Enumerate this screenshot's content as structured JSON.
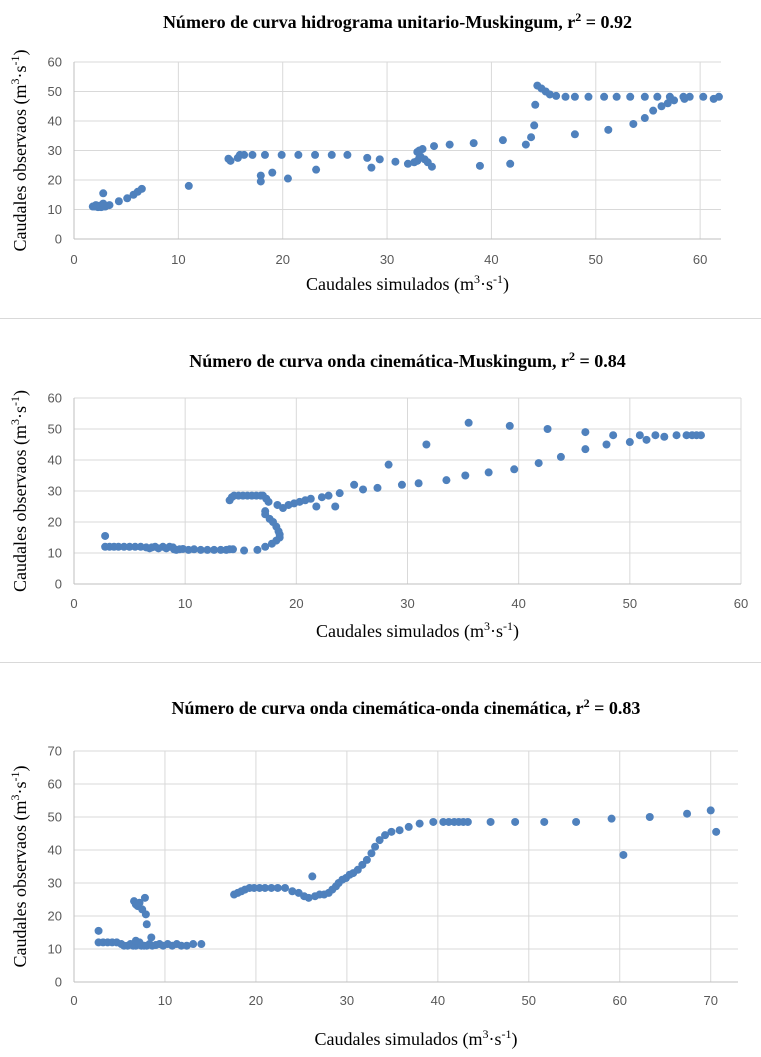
{
  "chart_data": [
    {
      "type": "scatter",
      "title": "Número de curva hidrograma unitario-Muskingum, r",
      "title_sup": "2",
      "title_tail": " = 0.92",
      "xlabel": "Caudales simulados (m",
      "xlabel_sup1": "3",
      "xlabel_mid": "·s",
      "xlabel_sup2": "-1",
      "xlabel_end": ")",
      "ylabel": "Caudales observaos (m",
      "ylabel_sup1": "3",
      "ylabel_mid": "·s",
      "ylabel_sup2": "-1",
      "ylabel_end": ")",
      "xlim": [
        0,
        62
      ],
      "ylim": [
        0,
        60
      ],
      "xticks": [
        0,
        10,
        20,
        30,
        40,
        50,
        60
      ],
      "yticks": [
        0,
        10,
        20,
        30,
        40,
        50,
        60
      ],
      "color": "#4f81bd",
      "points": [
        [
          1.8,
          11
        ],
        [
          2.0,
          11
        ],
        [
          2.1,
          11.5
        ],
        [
          2.2,
          11
        ],
        [
          2.3,
          10.8
        ],
        [
          2.4,
          11
        ],
        [
          2.5,
          11.3
        ],
        [
          2.6,
          10.8
        ],
        [
          2.7,
          11.2
        ],
        [
          2.8,
          11
        ],
        [
          3.0,
          11
        ],
        [
          2.8,
          12
        ],
        [
          2.8,
          15.5
        ],
        [
          3.4,
          11.5
        ],
        [
          4.3,
          12.8
        ],
        [
          5.1,
          13.8
        ],
        [
          5.7,
          15
        ],
        [
          6.1,
          16
        ],
        [
          6.5,
          17
        ],
        [
          11.0,
          18
        ],
        [
          14.8,
          27.2
        ],
        [
          15.0,
          26.5
        ],
        [
          15.7,
          27.5
        ],
        [
          15.9,
          28.5
        ],
        [
          16.3,
          28.5
        ],
        [
          17.1,
          28.5
        ],
        [
          18.3,
          28.5
        ],
        [
          19.9,
          28.5
        ],
        [
          21.5,
          28.5
        ],
        [
          23.1,
          28.5
        ],
        [
          24.7,
          28.5
        ],
        [
          26.2,
          28.5
        ],
        [
          17.9,
          21.5
        ],
        [
          17.9,
          19.5
        ],
        [
          19.0,
          22.5
        ],
        [
          20.5,
          20.5
        ],
        [
          23.2,
          23.5
        ],
        [
          28.1,
          27.5
        ],
        [
          28.5,
          24.2
        ],
        [
          29.3,
          27
        ],
        [
          30.8,
          26.2
        ],
        [
          32.0,
          25.5
        ],
        [
          32.6,
          26
        ],
        [
          32.9,
          26.5
        ],
        [
          33.1,
          27.5
        ],
        [
          33.2,
          28
        ],
        [
          32.9,
          29.5
        ],
        [
          33.1,
          30
        ],
        [
          33.4,
          30.5
        ],
        [
          33.6,
          27
        ],
        [
          33.9,
          26
        ],
        [
          34.3,
          24.5
        ],
        [
          34.5,
          31.5
        ],
        [
          36.0,
          32
        ],
        [
          38.3,
          32.5
        ],
        [
          38.9,
          24.8
        ],
        [
          41.1,
          33.5
        ],
        [
          41.8,
          25.5
        ],
        [
          43.3,
          32
        ],
        [
          43.8,
          34.5
        ],
        [
          44.1,
          38.5
        ],
        [
          44.2,
          45.5
        ],
        [
          44.4,
          52
        ],
        [
          44.8,
          51
        ],
        [
          45.2,
          50
        ],
        [
          45.6,
          49
        ],
        [
          46.2,
          48.5
        ],
        [
          47.1,
          48.2
        ],
        [
          48.0,
          48.2
        ],
        [
          49.3,
          48.2
        ],
        [
          50.8,
          48.2
        ],
        [
          52.0,
          48.2
        ],
        [
          53.3,
          48.2
        ],
        [
          54.7,
          48.2
        ],
        [
          55.9,
          48.2
        ],
        [
          57.1,
          48.2
        ],
        [
          58.4,
          48.2
        ],
        [
          59.0,
          48.2
        ],
        [
          60.3,
          48.2
        ],
        [
          61.8,
          48.2
        ],
        [
          48.0,
          35.5
        ],
        [
          51.2,
          37
        ],
        [
          53.6,
          39
        ],
        [
          54.7,
          41
        ],
        [
          55.5,
          43.5
        ],
        [
          56.3,
          45
        ],
        [
          56.9,
          46
        ],
        [
          57.5,
          47
        ],
        [
          58.5,
          47.5
        ],
        [
          61.3,
          47.5
        ]
      ]
    },
    {
      "type": "scatter",
      "title": "Número de curva onda cinemática-Muskingum, r",
      "title_sup": "2",
      "title_tail": " = 0.84",
      "xlabel": "Caudales simulados (m",
      "xlabel_sup1": "3",
      "xlabel_mid": "·s",
      "xlabel_sup2": "-1",
      "xlabel_end": ")",
      "ylabel": "Caudales observaos (m",
      "ylabel_sup1": "3",
      "ylabel_mid": "·s",
      "ylabel_sup2": "-1",
      "ylabel_end": ")",
      "xlim": [
        0,
        60
      ],
      "ylim": [
        0,
        60
      ],
      "xticks": [
        0,
        10,
        20,
        30,
        40,
        50,
        60
      ],
      "yticks": [
        0,
        10,
        20,
        30,
        40,
        50,
        60
      ],
      "color": "#4f81bd",
      "points": [
        [
          2.8,
          15.5
        ],
        [
          2.8,
          12
        ],
        [
          3.2,
          12
        ],
        [
          3.6,
          12
        ],
        [
          4.0,
          12
        ],
        [
          4.5,
          12
        ],
        [
          5.0,
          12
        ],
        [
          5.5,
          12
        ],
        [
          6.0,
          12
        ],
        [
          6.5,
          11.8
        ],
        [
          6.8,
          11.5
        ],
        [
          7.0,
          11.8
        ],
        [
          7.3,
          12
        ],
        [
          7.6,
          11.5
        ],
        [
          8.0,
          12
        ],
        [
          8.3,
          11.5
        ],
        [
          8.6,
          12
        ],
        [
          8.9,
          11.8
        ],
        [
          9.0,
          11.2
        ],
        [
          9.2,
          11
        ],
        [
          9.5,
          11.2
        ],
        [
          9.8,
          11.3
        ],
        [
          10.3,
          11
        ],
        [
          10.8,
          11.2
        ],
        [
          11.4,
          11
        ],
        [
          12.0,
          11
        ],
        [
          12.6,
          11
        ],
        [
          13.2,
          11
        ],
        [
          13.7,
          11
        ],
        [
          14.0,
          11.2
        ],
        [
          14.3,
          11.2
        ],
        [
          14.0,
          27
        ],
        [
          14.2,
          28
        ],
        [
          14.4,
          28.5
        ],
        [
          14.8,
          28.5
        ],
        [
          15.2,
          28.5
        ],
        [
          15.6,
          28.5
        ],
        [
          16.0,
          28.5
        ],
        [
          16.4,
          28.5
        ],
        [
          16.8,
          28.5
        ],
        [
          17.0,
          28.5
        ],
        [
          17.3,
          27.5
        ],
        [
          17.5,
          26.5
        ],
        [
          17.2,
          23.5
        ],
        [
          17.2,
          22.5
        ],
        [
          17.6,
          21
        ],
        [
          17.9,
          20
        ],
        [
          18.2,
          18.5
        ],
        [
          18.4,
          17
        ],
        [
          18.5,
          16
        ],
        [
          18.5,
          15
        ],
        [
          18.2,
          14
        ],
        [
          17.8,
          13
        ],
        [
          17.2,
          12
        ],
        [
          16.5,
          11
        ],
        [
          15.3,
          10.8
        ],
        [
          18.3,
          25.5
        ],
        [
          18.8,
          24.5
        ],
        [
          19.3,
          25.5
        ],
        [
          19.8,
          26
        ],
        [
          20.3,
          26.5
        ],
        [
          20.8,
          27
        ],
        [
          21.3,
          27.5
        ],
        [
          21.8,
          25
        ],
        [
          22.3,
          28
        ],
        [
          22.9,
          28.5
        ],
        [
          23.5,
          25
        ],
        [
          23.9,
          29.3
        ],
        [
          25.2,
          32
        ],
        [
          26.0,
          30.5
        ],
        [
          27.3,
          31
        ],
        [
          28.3,
          38.5
        ],
        [
          29.5,
          32
        ],
        [
          31.0,
          32.5
        ],
        [
          31.7,
          45
        ],
        [
          33.5,
          33.5
        ],
        [
          35.2,
          35
        ],
        [
          35.5,
          52
        ],
        [
          37.3,
          36
        ],
        [
          39.2,
          51
        ],
        [
          39.6,
          37
        ],
        [
          41.8,
          39
        ],
        [
          42.6,
          50
        ],
        [
          43.8,
          41
        ],
        [
          46.0,
          49
        ],
        [
          46.0,
          43.5
        ],
        [
          47.9,
          45
        ],
        [
          48.5,
          48
        ],
        [
          50.0,
          45.8
        ],
        [
          50.9,
          48
        ],
        [
          51.5,
          46.5
        ],
        [
          52.3,
          48
        ],
        [
          53.1,
          47.5
        ],
        [
          54.2,
          48
        ],
        [
          55.1,
          48
        ],
        [
          55.6,
          48
        ],
        [
          56.0,
          48
        ],
        [
          56.4,
          48
        ]
      ]
    },
    {
      "type": "scatter",
      "title": "Número de curva onda cinemática-onda cinemática, r",
      "title_sup": "2",
      "title_tail": " = 0.83",
      "xlabel": "Caudales simulados (m",
      "xlabel_sup1": "3",
      "xlabel_mid": "·s",
      "xlabel_sup2": "-1",
      "xlabel_end": ")",
      "ylabel": "Caudales observaos (m",
      "ylabel_sup1": "3",
      "ylabel_mid": "·s",
      "ylabel_sup2": "-1",
      "ylabel_end": ")",
      "xlim": [
        0,
        73
      ],
      "ylim": [
        0,
        70
      ],
      "xticks": [
        0,
        10,
        20,
        30,
        40,
        50,
        60,
        70
      ],
      "yticks": [
        0,
        10,
        20,
        30,
        40,
        50,
        60,
        70
      ],
      "color": "#4f81bd",
      "points": [
        [
          2.7,
          15.5
        ],
        [
          2.7,
          12
        ],
        [
          3.2,
          12
        ],
        [
          3.7,
          12
        ],
        [
          4.2,
          12
        ],
        [
          4.7,
          12
        ],
        [
          5.2,
          11.5
        ],
        [
          5.5,
          11
        ],
        [
          5.9,
          11
        ],
        [
          6.2,
          11.5
        ],
        [
          6.5,
          11
        ],
        [
          6.8,
          11
        ],
        [
          7.1,
          11.5
        ],
        [
          7.4,
          11
        ],
        [
          7.7,
          11
        ],
        [
          8.0,
          11
        ],
        [
          8.3,
          11.5
        ],
        [
          8.6,
          11
        ],
        [
          9.0,
          11.2
        ],
        [
          9.4,
          11.5
        ],
        [
          9.8,
          11
        ],
        [
          10.3,
          11.5
        ],
        [
          10.8,
          11
        ],
        [
          11.3,
          11.5
        ],
        [
          11.8,
          11
        ],
        [
          12.4,
          11
        ],
        [
          13.1,
          11.5
        ],
        [
          14.0,
          11.5
        ],
        [
          6.6,
          24.5
        ],
        [
          6.8,
          23.5
        ],
        [
          7.0,
          23
        ],
        [
          7.2,
          24
        ],
        [
          7.5,
          22
        ],
        [
          7.8,
          25.5
        ],
        [
          7.9,
          20.5
        ],
        [
          8.0,
          17.5
        ],
        [
          8.5,
          13.5
        ],
        [
          7.2,
          12
        ],
        [
          6.8,
          12.5
        ],
        [
          17.6,
          26.5
        ],
        [
          18.0,
          27
        ],
        [
          18.4,
          27.5
        ],
        [
          18.8,
          28
        ],
        [
          19.3,
          28.5
        ],
        [
          19.8,
          28.5
        ],
        [
          20.4,
          28.5
        ],
        [
          21.0,
          28.5
        ],
        [
          21.7,
          28.5
        ],
        [
          22.4,
          28.5
        ],
        [
          23.2,
          28.5
        ],
        [
          24.0,
          27.5
        ],
        [
          24.7,
          27
        ],
        [
          25.3,
          26
        ],
        [
          25.8,
          25.5
        ],
        [
          26.2,
          32
        ],
        [
          26.5,
          26
        ],
        [
          27.0,
          26.5
        ],
        [
          27.5,
          26.5
        ],
        [
          28.0,
          27
        ],
        [
          28.4,
          28
        ],
        [
          28.8,
          29
        ],
        [
          29.1,
          30
        ],
        [
          29.5,
          31
        ],
        [
          29.9,
          31.5
        ],
        [
          30.3,
          32.5
        ],
        [
          30.7,
          33
        ],
        [
          31.2,
          34
        ],
        [
          31.7,
          35.5
        ],
        [
          32.2,
          37
        ],
        [
          32.7,
          39
        ],
        [
          33.1,
          41
        ],
        [
          33.6,
          43
        ],
        [
          34.2,
          44.5
        ],
        [
          34.9,
          45.5
        ],
        [
          35.8,
          46
        ],
        [
          36.8,
          47
        ],
        [
          38.0,
          48
        ],
        [
          39.5,
          48.5
        ],
        [
          40.6,
          48.5
        ],
        [
          41.2,
          48.5
        ],
        [
          41.8,
          48.5
        ],
        [
          42.3,
          48.5
        ],
        [
          42.8,
          48.5
        ],
        [
          43.3,
          48.5
        ],
        [
          45.8,
          48.5
        ],
        [
          48.5,
          48.5
        ],
        [
          51.7,
          48.5
        ],
        [
          55.2,
          48.5
        ],
        [
          59.1,
          49.5
        ],
        [
          60.4,
          38.5
        ],
        [
          63.3,
          50
        ],
        [
          67.4,
          51
        ],
        [
          70.0,
          52
        ],
        [
          70.6,
          45.5
        ]
      ]
    }
  ]
}
